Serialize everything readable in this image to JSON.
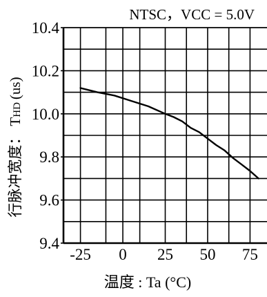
{
  "chart_data": {
    "type": "line",
    "title": "NTSC，VCC = 5.0V",
    "xlabel": "温度 : Ta (°C)",
    "ylabel_cn": "行脉冲宽度：",
    "ylabel_sym_main": "T",
    "ylabel_sym_sub": "HD",
    "ylabel_unit": "(us)",
    "xlim": [
      -35,
      85
    ],
    "ylim": [
      9.4,
      10.4
    ],
    "x_ticks": [
      -25,
      0,
      25,
      50,
      75
    ],
    "x_tick_labels": [
      "-25",
      "0",
      "25",
      "50",
      "75"
    ],
    "y_ticks": [
      9.4,
      9.6,
      9.8,
      10.0,
      10.2,
      10.4
    ],
    "y_tick_labels": [
      "9.4",
      "9.6",
      "9.8",
      "10.0",
      "10.2",
      "10.4"
    ],
    "x_grid_minor": [
      -10,
      10,
      37.5,
      62.5
    ],
    "y_grid_minor": [
      9.5,
      9.7,
      9.9,
      10.1,
      10.3
    ],
    "grid": true,
    "series": [
      {
        "x": [
          -25,
          -15,
          -5,
          5,
          15,
          25,
          30,
          35,
          40,
          45,
          50,
          55,
          60,
          65,
          70,
          75,
          80
        ],
        "y": [
          10.12,
          10.1,
          10.085,
          10.06,
          10.035,
          10.0,
          9.985,
          9.965,
          9.935,
          9.915,
          9.885,
          9.855,
          9.83,
          9.795,
          9.765,
          9.735,
          9.7
        ]
      }
    ],
    "line_color": "#000000"
  }
}
